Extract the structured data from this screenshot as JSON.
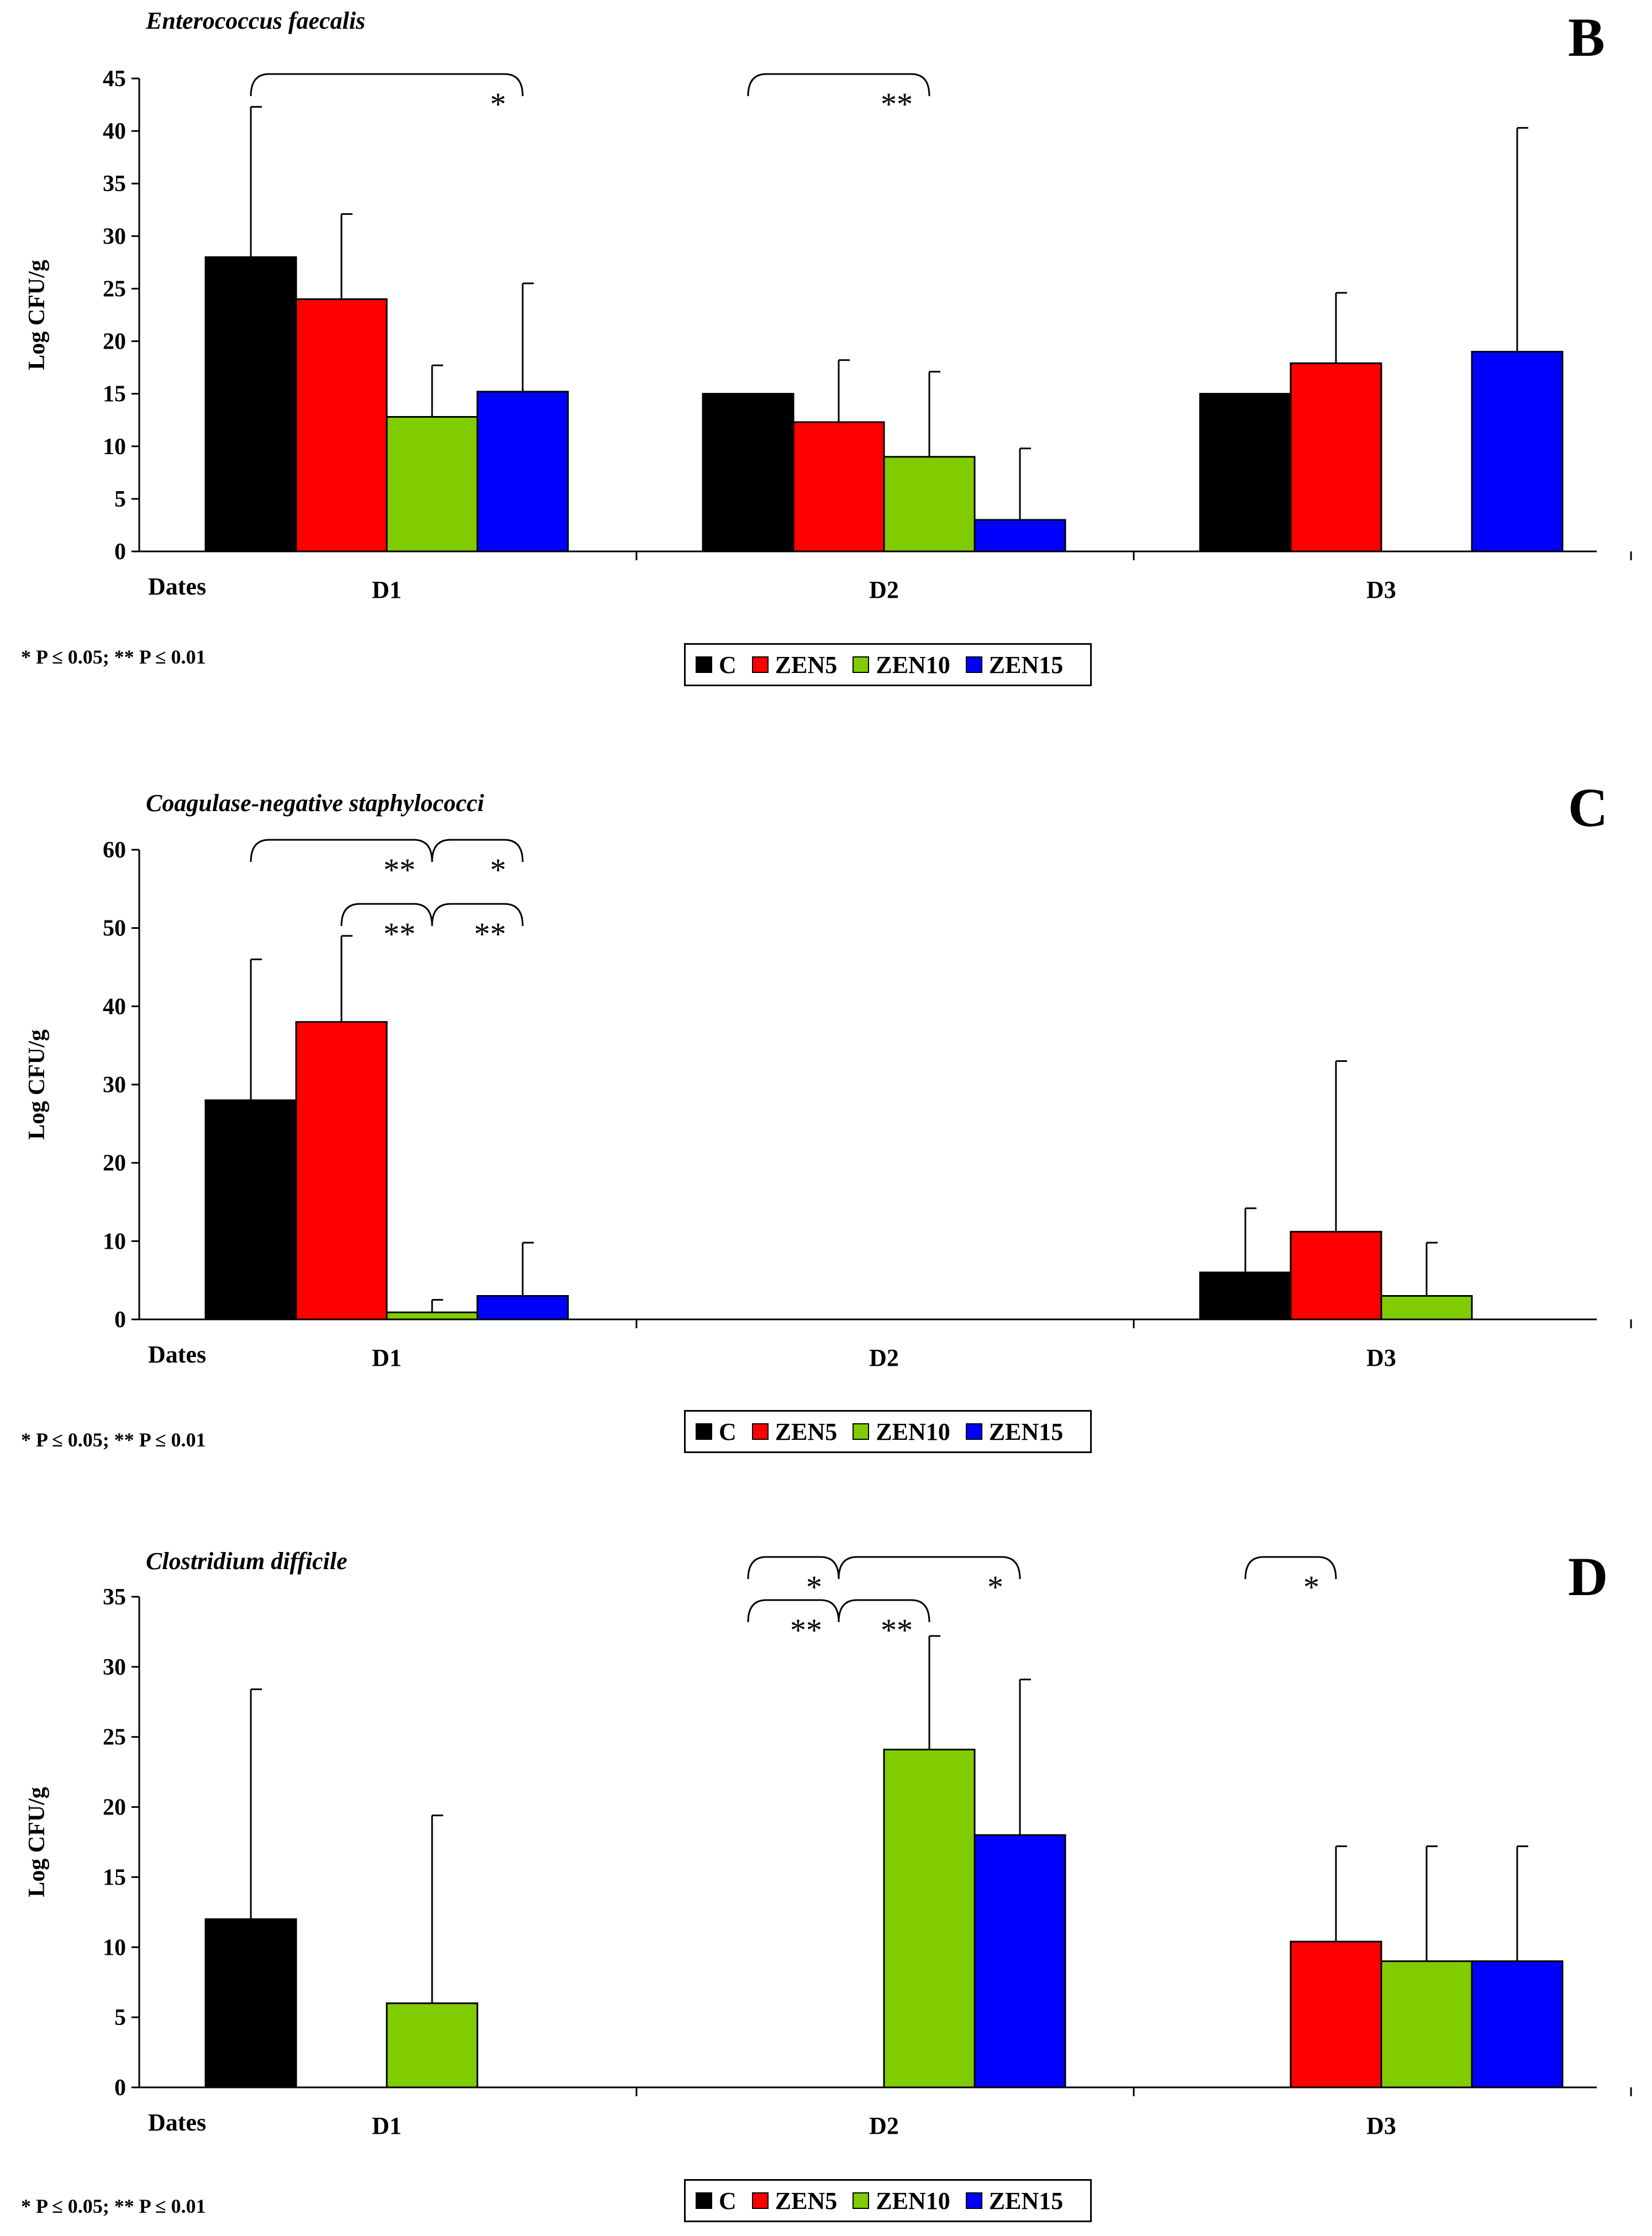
{
  "legend": [
    {
      "label": "C",
      "color": "#000000"
    },
    {
      "label": "ZEN5",
      "color": "#ff0000"
    },
    {
      "label": "ZEN10",
      "color": "#80cc00"
    },
    {
      "label": "ZEN15",
      "color": "#0000ff"
    }
  ],
  "chart_data": [
    {
      "type": "bar",
      "panel_letter": "B",
      "title": "Enterococcus faecalis",
      "ylabel": "Log CFU/g",
      "xlabel": "Dates",
      "categories": [
        "D1",
        "D2",
        "D3"
      ],
      "ylim": [
        0,
        45
      ],
      "yticks": [
        0,
        5,
        10,
        15,
        20,
        25,
        30,
        35,
        40,
        45
      ],
      "series": [
        {
          "name": "C",
          "values": [
            28,
            15,
            15
          ],
          "errors": [
            14.3,
            0,
            0
          ]
        },
        {
          "name": "ZEN5",
          "values": [
            24,
            12.3,
            17.9
          ],
          "errors": [
            8.1,
            5.9,
            6.7
          ]
        },
        {
          "name": "ZEN10",
          "values": [
            12.8,
            9,
            0
          ],
          "errors": [
            4.9,
            8.1,
            0
          ]
        },
        {
          "name": "ZEN15",
          "values": [
            15.2,
            3,
            19
          ],
          "errors": [
            10.3,
            6.8,
            21.3
          ]
        }
      ],
      "significance": [
        {
          "category": "D1",
          "from": "C",
          "to": "ZEN15",
          "level": 0,
          "label": "*"
        },
        {
          "category": "D2",
          "from": "C",
          "to": "ZEN10",
          "level": 0,
          "label": "**"
        }
      ],
      "footnote": "* P ≤ 0.05; ** P ≤ 0.01"
    },
    {
      "type": "bar",
      "panel_letter": "C",
      "title": "Coagulase-negative staphylococci",
      "ylabel": "Log CFU/g",
      "xlabel": "Dates",
      "categories": [
        "D1",
        "D2",
        "D3"
      ],
      "ylim": [
        0,
        60
      ],
      "yticks": [
        0,
        10,
        20,
        30,
        40,
        50,
        60
      ],
      "series": [
        {
          "name": "C",
          "values": [
            28,
            0,
            6
          ],
          "errors": [
            18,
            0,
            8.2
          ]
        },
        {
          "name": "ZEN5",
          "values": [
            38,
            0,
            11.2
          ],
          "errors": [
            11,
            0,
            21.8
          ]
        },
        {
          "name": "ZEN10",
          "values": [
            0.9,
            0,
            3
          ],
          "errors": [
            1.6,
            0,
            6.8
          ]
        },
        {
          "name": "ZEN15",
          "values": [
            3,
            0,
            0
          ],
          "errors": [
            6.8,
            0,
            0
          ]
        }
      ],
      "significance": [
        {
          "category": "D1",
          "from": "C",
          "to": "ZEN10",
          "level": 0,
          "label": "**"
        },
        {
          "category": "D1",
          "from": "ZEN10",
          "to": "ZEN15",
          "level": 0,
          "label": "*"
        },
        {
          "category": "D1",
          "from": "ZEN5",
          "to": "ZEN10",
          "level": 1,
          "label": "**"
        },
        {
          "category": "D1",
          "from": "ZEN10",
          "to": "ZEN15",
          "level": 1,
          "label": "**"
        }
      ],
      "footnote": "* P ≤ 0.05; ** P ≤ 0.01"
    },
    {
      "type": "bar",
      "panel_letter": "D",
      "title": "Clostridium difficile",
      "ylabel": "Log CFU/g",
      "xlabel": "Dates",
      "categories": [
        "D1",
        "D2",
        "D3"
      ],
      "ylim": [
        0,
        35
      ],
      "yticks": [
        0,
        5,
        10,
        15,
        20,
        25,
        30,
        35
      ],
      "series": [
        {
          "name": "C",
          "values": [
            12,
            0,
            0
          ],
          "errors": [
            16.4,
            0,
            0
          ]
        },
        {
          "name": "ZEN5",
          "values": [
            0,
            0,
            10.4
          ],
          "errors": [
            0,
            0,
            6.8
          ]
        },
        {
          "name": "ZEN10",
          "values": [
            6,
            24.1,
            9
          ],
          "errors": [
            13.4,
            8.1,
            8.2
          ]
        },
        {
          "name": "ZEN15",
          "values": [
            0,
            18,
            9
          ],
          "errors": [
            0,
            11.1,
            8.2
          ]
        }
      ],
      "significance": [
        {
          "category": "D2",
          "from": "C",
          "to": "ZEN5",
          "level": 0,
          "label": "*"
        },
        {
          "category": "D2",
          "from": "ZEN5",
          "to": "ZEN15",
          "level": 0,
          "label": "*"
        },
        {
          "category": "D2",
          "from": "C",
          "to": "ZEN5",
          "level": 1,
          "label": "**"
        },
        {
          "category": "D2",
          "from": "ZEN5",
          "to": "ZEN10",
          "level": 1,
          "label": "**"
        },
        {
          "category": "D3",
          "from": "C",
          "to": "ZEN5",
          "level": 0,
          "label": "*"
        }
      ],
      "footnote": "* P ≤ 0.05; ** P ≤ 0.01"
    }
  ]
}
